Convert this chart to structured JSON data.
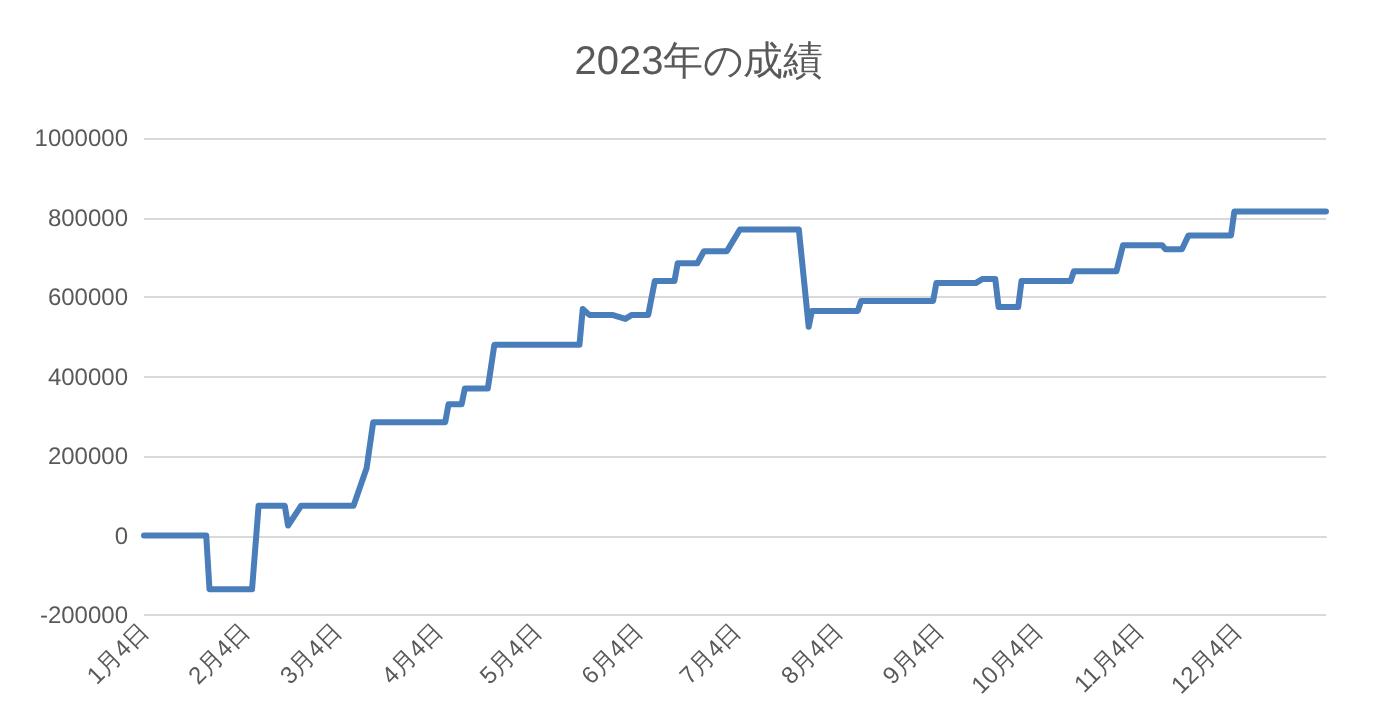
{
  "chart_data": {
    "type": "line",
    "title": "2023年の成績",
    "x": [
      "2023-01-04",
      "2023-01-23",
      "2023-01-24",
      "2023-02-06",
      "2023-02-08",
      "2023-02-16",
      "2023-02-17",
      "2023-02-21",
      "2023-03-09",
      "2023-03-13",
      "2023-03-15",
      "2023-04-06",
      "2023-04-07",
      "2023-04-11",
      "2023-04-12",
      "2023-04-19",
      "2023-04-21",
      "2023-05-17",
      "2023-05-18",
      "2023-05-20",
      "2023-05-27",
      "2023-05-31",
      "2023-06-02",
      "2023-06-07",
      "2023-06-09",
      "2023-06-15",
      "2023-06-16",
      "2023-06-22",
      "2023-06-24",
      "2023-07-01",
      "2023-07-05",
      "2023-07-23",
      "2023-07-26",
      "2023-07-27",
      "2023-08-10",
      "2023-08-11",
      "2023-09-02",
      "2023-09-03",
      "2023-09-15",
      "2023-09-17",
      "2023-09-21",
      "2023-09-22",
      "2023-09-28",
      "2023-09-29",
      "2023-10-14",
      "2023-10-15",
      "2023-10-28",
      "2023-10-30",
      "2023-11-11",
      "2023-11-12",
      "2023-11-17",
      "2023-11-19",
      "2023-12-02",
      "2023-12-03",
      "2023-12-31"
    ],
    "series": [
      {
        "color": "#4a7ebb",
        "values": [
          0,
          0,
          -135000,
          -135000,
          75000,
          75000,
          25000,
          75000,
          75000,
          170000,
          285000,
          285000,
          330000,
          330000,
          370000,
          370000,
          480000,
          480000,
          570000,
          555000,
          555000,
          545000,
          555000,
          555000,
          640000,
          640000,
          685000,
          685000,
          715000,
          715000,
          770000,
          770000,
          525000,
          565000,
          565000,
          590000,
          590000,
          635000,
          635000,
          645000,
          645000,
          575000,
          575000,
          640000,
          640000,
          665000,
          665000,
          730000,
          730000,
          720000,
          720000,
          755000,
          755000,
          815000,
          815000
        ]
      }
    ],
    "xlim": [
      "2023-01-04",
      "2023-12-31"
    ],
    "xticks": [
      {
        "value": "2023-01-04",
        "label": "1月4日"
      },
      {
        "value": "2023-02-04",
        "label": "2月4日"
      },
      {
        "value": "2023-03-04",
        "label": "3月4日"
      },
      {
        "value": "2023-04-04",
        "label": "4月4日"
      },
      {
        "value": "2023-05-04",
        "label": "5月4日"
      },
      {
        "value": "2023-06-04",
        "label": "6月4日"
      },
      {
        "value": "2023-07-04",
        "label": "7月4日"
      },
      {
        "value": "2023-08-04",
        "label": "8月4日"
      },
      {
        "value": "2023-09-04",
        "label": "9月4日"
      },
      {
        "value": "2023-10-04",
        "label": "10月4日"
      },
      {
        "value": "2023-11-04",
        "label": "11月4日"
      },
      {
        "value": "2023-12-04",
        "label": "12月4日"
      }
    ],
    "ylim": [
      -200000,
      1000000
    ],
    "yticks": [
      -200000,
      0,
      200000,
      400000,
      600000,
      800000,
      1000000
    ],
    "grid": "y",
    "marker": "none",
    "line_style": "solid"
  }
}
